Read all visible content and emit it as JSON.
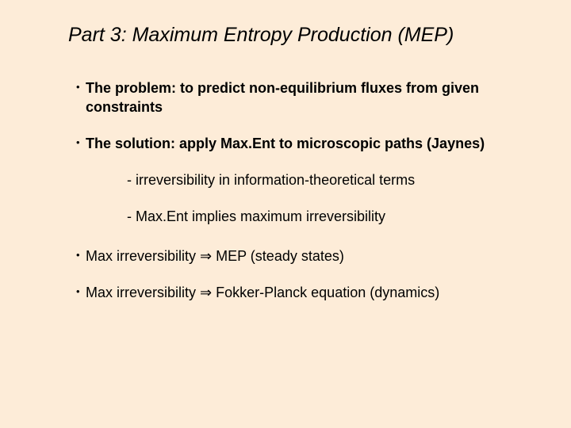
{
  "title": "Part 3: Maximum Entropy Production (MEP)",
  "bullets": {
    "b1": "The problem: to predict non-equilibrium fluxes from given constraints",
    "b2": "The solution: apply Max.Ent to microscopic paths (Jaynes)",
    "s1": "- irreversibility in information-theoretical terms",
    "s2": "- Max.Ent implies maximum irreversibility",
    "b3_pre": "Max irreversibility ",
    "b3_arrow": "⇒",
    "b3_post": " MEP (steady states)",
    "b4_pre": "Max irreversibility ",
    "b4_arrow": "⇒",
    "b4_post": " Fokker-Planck equation (dynamics)"
  },
  "colors": {
    "background": "#fdecd8",
    "text": "#000000"
  },
  "typography": {
    "title_fontsize": 25,
    "body_fontsize": 18,
    "title_style": "italic"
  }
}
